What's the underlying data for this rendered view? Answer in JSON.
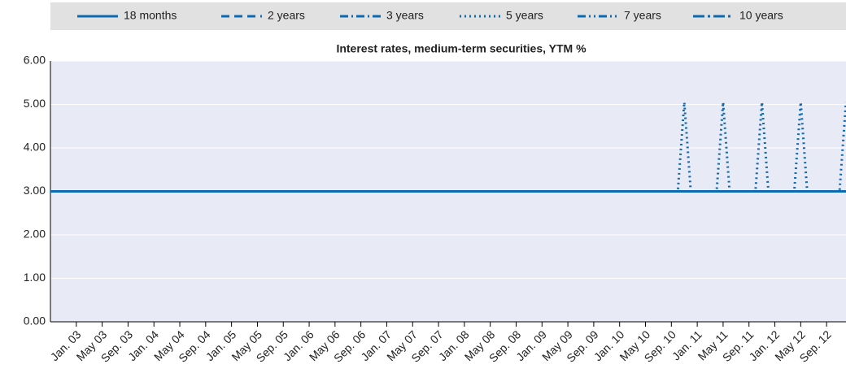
{
  "chart_data": {
    "type": "line",
    "title": "Interest rates, medium-term securities, YTM %",
    "legend": "top",
    "grid": true,
    "categories": [
      null,
      null,
      null,
      null,
      "Jan. 03",
      null,
      null,
      null,
      "May 03",
      null,
      null,
      null,
      "Sep. 03",
      null,
      null,
      null,
      "Jan. 04",
      null,
      null,
      null,
      "May 04",
      null,
      null,
      null,
      "Sep. 04",
      null,
      null,
      null,
      "Jan. 05",
      null,
      null,
      null,
      "May 05",
      null,
      null,
      null,
      "Sep. 05",
      null,
      null,
      null,
      "Jan. 06",
      null,
      null,
      null,
      "May 06",
      null,
      null,
      null,
      "Sep. 06",
      null,
      null,
      null,
      "Jan. 07",
      null,
      null,
      null,
      "May 07",
      null,
      null,
      null,
      "Sep. 07",
      null,
      null,
      null,
      "Jan. 08",
      null,
      null,
      null,
      "May 08",
      null,
      null,
      null,
      "Sep. 08",
      null,
      null,
      null,
      "Jan. 09",
      null,
      null,
      null,
      "May 09",
      null,
      null,
      null,
      "Sep. 09",
      null,
      null,
      null,
      "Jan. 10",
      null,
      null,
      null,
      "May 10",
      null,
      null,
      null,
      "Sep. 10",
      null,
      null,
      null,
      "Jan. 11",
      null,
      null,
      null,
      "May 11",
      null,
      null,
      null,
      "Sep. 11",
      null,
      null,
      null,
      "Jan. 12",
      null,
      null,
      null,
      "May 12",
      null,
      null,
      null,
      "Sep. 12",
      null,
      null,
      null
    ],
    "series": [
      {
        "name": "18 months",
        "color": "#0e6ab0",
        "dash": "none",
        "values": [
          3,
          3,
          3,
          3,
          3,
          3,
          3,
          3,
          3,
          3,
          3,
          3,
          3,
          3,
          3,
          3,
          3,
          3,
          3,
          3,
          3,
          3,
          3,
          3,
          3,
          3,
          3,
          3,
          3,
          3,
          3,
          3,
          3,
          3,
          3,
          3,
          3,
          3,
          3,
          3,
          3,
          3,
          3,
          3,
          3,
          3,
          3,
          3,
          3,
          3,
          3,
          3,
          3,
          3,
          3,
          3,
          3,
          3,
          3,
          3,
          3,
          3,
          3,
          3,
          3,
          3,
          3,
          3,
          3,
          3,
          3,
          3,
          3,
          3,
          3,
          3,
          3,
          3,
          3,
          3,
          3,
          3,
          3,
          3,
          3,
          3,
          3,
          3,
          3,
          3,
          3,
          3,
          3,
          3,
          3,
          3,
          3,
          3,
          3,
          3,
          3,
          3,
          3,
          3,
          3,
          3,
          3,
          3,
          3,
          3,
          3,
          3,
          3,
          3,
          3,
          3,
          3,
          3,
          3,
          3,
          3,
          3,
          3,
          3
        ]
      },
      {
        "name": "2 years",
        "color": "#0e6ab0",
        "dash": "10,6",
        "values": [
          3,
          3,
          3,
          3,
          3,
          3,
          3,
          3,
          3,
          3,
          3,
          3,
          3,
          3,
          3,
          3,
          3,
          3,
          3,
          3,
          3,
          3,
          3,
          3,
          3,
          3,
          3,
          3,
          3,
          3,
          3,
          3,
          3,
          3,
          3,
          3,
          3,
          3,
          3,
          3,
          3,
          3,
          3,
          3,
          3,
          3,
          3,
          3,
          3,
          3,
          3,
          3,
          3,
          3,
          3,
          3,
          3,
          3,
          3,
          3,
          3,
          3,
          3,
          3,
          3,
          3,
          3,
          3,
          3,
          3,
          3,
          3,
          3,
          3,
          3,
          3,
          3,
          3,
          3,
          3,
          3,
          3,
          3,
          3,
          3,
          3,
          3,
          3,
          3,
          3,
          3,
          3,
          3,
          3,
          3,
          3,
          3,
          3,
          3,
          3,
          3,
          3,
          3,
          3,
          3,
          3,
          3,
          3,
          3,
          3,
          3,
          3,
          3,
          3,
          3,
          3,
          3,
          3,
          3,
          3,
          3,
          3,
          3,
          3
        ]
      },
      {
        "name": "3 years",
        "color": "#0e6ab0",
        "dash": "10,4,2,4",
        "values": [
          3,
          3,
          3,
          3,
          3,
          3,
          3,
          3,
          3,
          3,
          3,
          3,
          3,
          3,
          3,
          3,
          3,
          3,
          3,
          3,
          3,
          3,
          3,
          3,
          3,
          3,
          3,
          3,
          3,
          3,
          3,
          3,
          3,
          3,
          3,
          3,
          3,
          3,
          3,
          3,
          3,
          3,
          3,
          3,
          3,
          3,
          3,
          3,
          3,
          3,
          3,
          3,
          3,
          3,
          3,
          3,
          3,
          3,
          3,
          3,
          3,
          3,
          3,
          3,
          3,
          3,
          3,
          3,
          3,
          3,
          3,
          3,
          3,
          3,
          3,
          3,
          3,
          3,
          3,
          3,
          3,
          3,
          3,
          3,
          3,
          3,
          3,
          3,
          3,
          3,
          3,
          3,
          3,
          3,
          3,
          3,
          3,
          3,
          3,
          3,
          3,
          3,
          3,
          3,
          3,
          3,
          3,
          3,
          3,
          3,
          3,
          3,
          3,
          3,
          3,
          3,
          3,
          3,
          3,
          3,
          3,
          3,
          3,
          3
        ]
      },
      {
        "name": "5 years",
        "color": "#0e6ab0",
        "dash": "2,4",
        "values": [
          3,
          3,
          3,
          3,
          3,
          3,
          3,
          3,
          3,
          3,
          3,
          3,
          3,
          3,
          3,
          3,
          3,
          3,
          3,
          3,
          3,
          3,
          3,
          3,
          3,
          3,
          3,
          3,
          3,
          3,
          3,
          3,
          3,
          3,
          3,
          3,
          3,
          3,
          3,
          3,
          3,
          3,
          3,
          3,
          3,
          3,
          3,
          3,
          3,
          3,
          3,
          3,
          3,
          3,
          3,
          3,
          3,
          3,
          3,
          3,
          3,
          3,
          3,
          3,
          3,
          3,
          3,
          3,
          3,
          3,
          3,
          3,
          3,
          3,
          3,
          3,
          3,
          3,
          3,
          3,
          3,
          3,
          3,
          3,
          3,
          3,
          3,
          3,
          3,
          3,
          3,
          3,
          3,
          3,
          3,
          3,
          3,
          3,
          5.05,
          3,
          3,
          3,
          3,
          3,
          5.05,
          3,
          3,
          3,
          3,
          3,
          5.05,
          3,
          3,
          3,
          3,
          3,
          5.05,
          3,
          3,
          3,
          3,
          3,
          3,
          5.05
        ]
      },
      {
        "name": "7 years",
        "color": "#0e6ab0",
        "dash": "10,4,2,4,2,4",
        "values": [
          3,
          3,
          3,
          3,
          3,
          3,
          3,
          3,
          3,
          3,
          3,
          3,
          3,
          3,
          3,
          3,
          3,
          3,
          3,
          3,
          3,
          3,
          3,
          3,
          3,
          3,
          3,
          3,
          3,
          3,
          3,
          3,
          3,
          3,
          3,
          3,
          3,
          3,
          3,
          3,
          3,
          3,
          3,
          3,
          3,
          3,
          3,
          3,
          3,
          3,
          3,
          3,
          3,
          3,
          3,
          3,
          3,
          3,
          3,
          3,
          3,
          3,
          3,
          3,
          3,
          3,
          3,
          3,
          3,
          3,
          3,
          3,
          3,
          3,
          3,
          3,
          3,
          3,
          3,
          3,
          3,
          3,
          3,
          3,
          3,
          3,
          3,
          3,
          3,
          3,
          3,
          3,
          3,
          3,
          3,
          3,
          3,
          3,
          3,
          3,
          3,
          3,
          3,
          3,
          3,
          3,
          3,
          3,
          3,
          3,
          3,
          3,
          3,
          3,
          3,
          3,
          3,
          3,
          3,
          3,
          3,
          3,
          3,
          3
        ]
      },
      {
        "name": "10 years",
        "color": "#0e6ab0",
        "dash": "14,4,3,4",
        "values": [
          3,
          3,
          3,
          3,
          3,
          3,
          3,
          3,
          3,
          3,
          3,
          3,
          3,
          3,
          3,
          3,
          3,
          3,
          3,
          3,
          3,
          3,
          3,
          3,
          3,
          3,
          3,
          3,
          3,
          3,
          3,
          3,
          3,
          3,
          3,
          3,
          3,
          3,
          3,
          3,
          3,
          3,
          3,
          3,
          3,
          3,
          3,
          3,
          3,
          3,
          3,
          3,
          3,
          3,
          3,
          3,
          3,
          3,
          3,
          3,
          3,
          3,
          3,
          3,
          3,
          3,
          3,
          3,
          3,
          3,
          3,
          3,
          3,
          3,
          3,
          3,
          3,
          3,
          3,
          3,
          3,
          3,
          3,
          3,
          3,
          3,
          3,
          3,
          3,
          3,
          3,
          3,
          3,
          3,
          3,
          3,
          3,
          3,
          3,
          3,
          3,
          3,
          3,
          3,
          3,
          3,
          3,
          3,
          3,
          3,
          3,
          3,
          3,
          3,
          3,
          3,
          3,
          3,
          3,
          3,
          3,
          3,
          3,
          3
        ]
      }
    ],
    "ylim": [
      0,
      6
    ],
    "yticks": [
      {
        "value": 0,
        "label": "0.00"
      },
      {
        "value": 1,
        "label": "1.00"
      },
      {
        "value": 2,
        "label": "2.00"
      },
      {
        "value": 3,
        "label": "3.00"
      },
      {
        "value": 4,
        "label": "4.00"
      },
      {
        "value": 5,
        "label": "5.00"
      },
      {
        "value": 6,
        "label": "6.00"
      }
    ]
  }
}
